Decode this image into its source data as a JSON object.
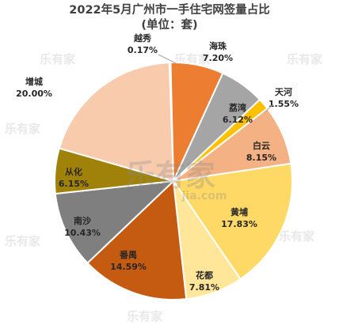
{
  "chart_data": {
    "type": "pie",
    "title": "2022年5月广州市一手住宅网签量占比",
    "subtitle": "(单位：套)",
    "start_angle_deg": -1.98,
    "slices": [
      {
        "name": "越秀",
        "value": 0.17,
        "label": "0.17%",
        "color": "#ED7D31"
      },
      {
        "name": "海珠",
        "value": 7.2,
        "label": "7.20%",
        "color": "#ED7D31"
      },
      {
        "name": "荔湾",
        "value": 6.12,
        "label": "6.12%",
        "color": "#A5A5A5"
      },
      {
        "name": "天河",
        "value": 1.55,
        "label": "1.55%",
        "color": "#FFC000"
      },
      {
        "name": "白云",
        "value": 8.15,
        "label": "8.15%",
        "color": "#F4B183"
      },
      {
        "name": "黄埔",
        "value": 17.83,
        "label": "17.83%",
        "color": "#FFD966"
      },
      {
        "name": "花都",
        "value": 7.81,
        "label": "7.81%",
        "color": "#FFE699"
      },
      {
        "name": "番禺",
        "value": 14.59,
        "label": "14.59%",
        "color": "#C55A11"
      },
      {
        "name": "南沙",
        "value": 10.43,
        "label": "10.43%",
        "color": "#7F7F7F"
      },
      {
        "name": "从化",
        "value": 6.15,
        "label": "6.15%",
        "color": "#A0820A"
      },
      {
        "name": "增城",
        "value": 20.0,
        "label": "20.00%",
        "color": "#F8CBAD"
      }
    ],
    "legend": "none"
  },
  "watermark": {
    "text": "乐有家",
    "url": "jia.com"
  }
}
